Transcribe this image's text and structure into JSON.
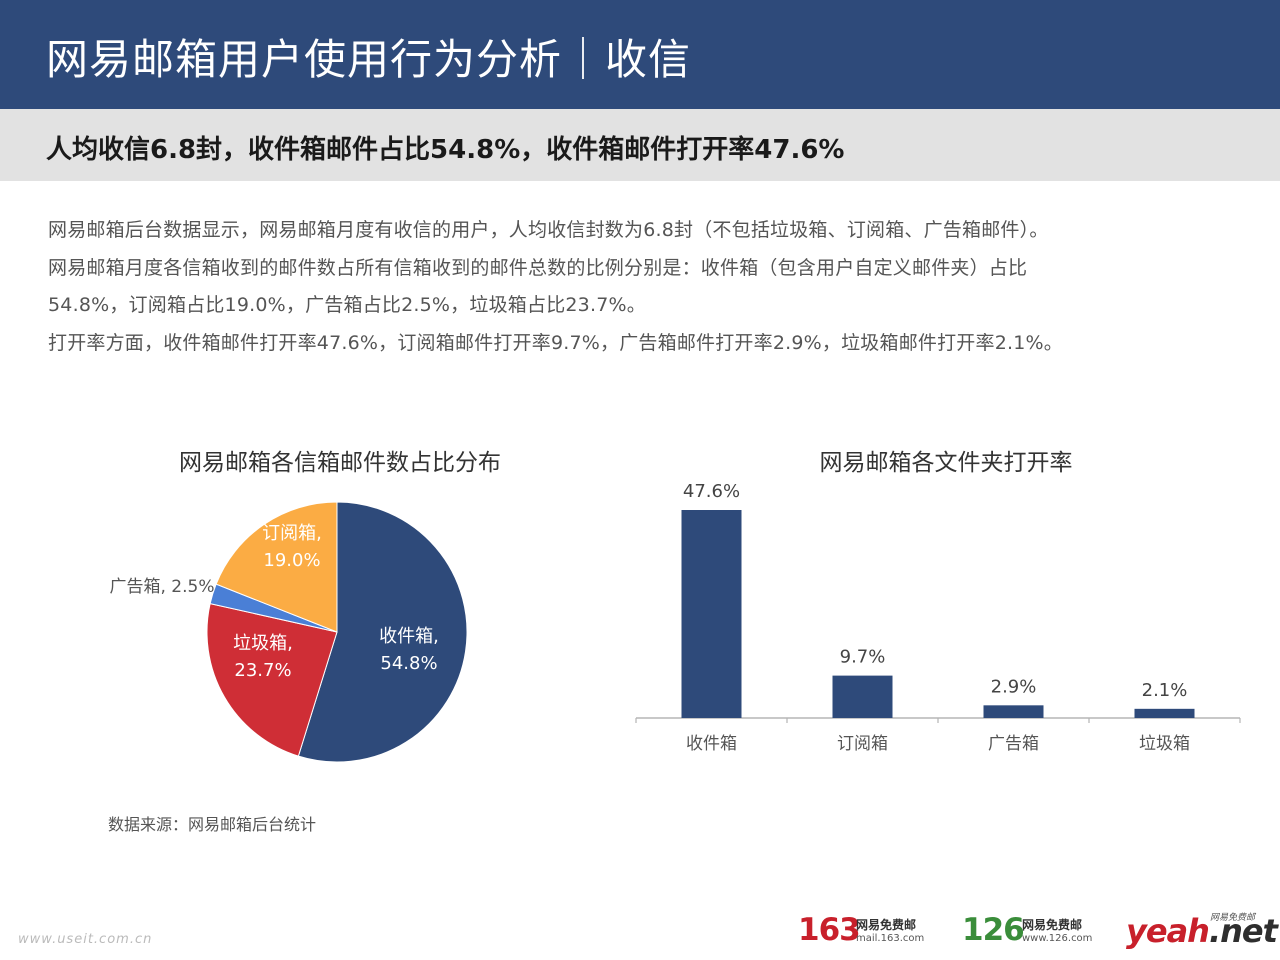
{
  "header": {
    "title": "网易邮箱用户使用行为分析｜收信"
  },
  "subheader": {
    "text": "人均收信6.8封，收件箱邮件占比54.8%，收件箱邮件打开率47.6%"
  },
  "paragraphs": [
    "网易邮箱后台数据显示，网易邮箱月度有收信的用户，人均收信封数为6.8封（不包括垃圾箱、订阅箱、广告箱邮件）。",
    "网易邮箱月度各信箱收到的邮件数占所有信箱收到的邮件总数的比例分别是：收件箱（包含用户自定义邮件夹）占比",
    "54.8%，订阅箱占比19.0%，广告箱占比2.5%，垃圾箱占比23.7%。",
    "打开率方面，收件箱邮件打开率47.6%，订阅箱邮件打开率9.7%，广告箱邮件打开率2.9%，垃圾箱邮件打开率2.1%。"
  ],
  "chart_data": [
    {
      "type": "pie",
      "title": "网易邮箱各信箱邮件数占比分布",
      "slices": [
        {
          "label": "收件箱",
          "value": 54.8,
          "display": "54.8%",
          "color": "#2e4a7a",
          "label_color": "#ffffff"
        },
        {
          "label": "垃圾箱",
          "value": 23.7,
          "display": "23.7%",
          "color": "#cf2e36",
          "label_color": "#ffffff"
        },
        {
          "label": "广告箱",
          "value": 2.5,
          "display": "2.5%",
          "color": "#4a7fd6",
          "label_color": "#555555"
        },
        {
          "label": "订阅箱",
          "value": 19.0,
          "display": "19.0%",
          "color": "#fbac44",
          "label_color": "#ffffff"
        }
      ],
      "start": "12 o'clock",
      "direction": "clockwise"
    },
    {
      "type": "bar",
      "title": "网易邮箱各文件夹打开率",
      "categories": [
        "收件箱",
        "订阅箱",
        "广告箱",
        "垃圾箱"
      ],
      "values": [
        47.6,
        9.7,
        2.9,
        2.1
      ],
      "value_labels": [
        "47.6%",
        "9.7%",
        "2.9%",
        "2.1%"
      ],
      "color": "#2e4a7a",
      "ylim": [
        0,
        47.6
      ],
      "grid": false,
      "y_axis_visible": false
    }
  ],
  "source": "数据来源：网易邮箱后台统计",
  "watermark": "www.useit.com.cn",
  "logos": {
    "l163": {
      "number": "163",
      "cn": "网易免费邮",
      "url": "mail.163.com"
    },
    "l126": {
      "number": "126",
      "cn": "网易免费邮",
      "url": "www.126.com"
    },
    "yeah": {
      "word": "yeah",
      "suffix": ".net",
      "tag": "网易免费邮"
    }
  },
  "colors": {
    "brand_blue": "#2e4a7a",
    "brand_red": "#c8202b",
    "brand_green": "#3a8d3a"
  }
}
